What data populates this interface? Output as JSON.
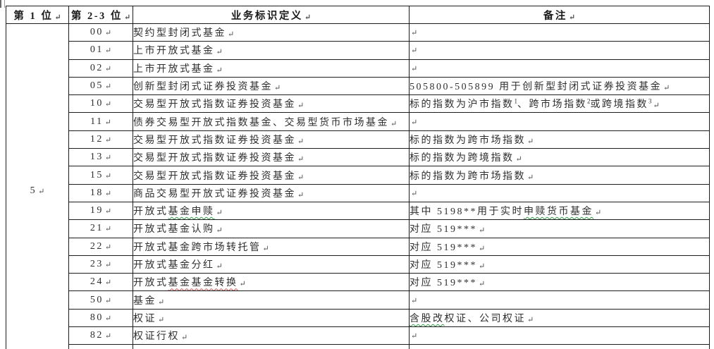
{
  "table": {
    "headers": [
      "第 1 位",
      "第 2-3 位",
      "业务标识定义",
      "备注"
    ],
    "first_digit": "5",
    "return_mark": "↵",
    "rows": [
      {
        "code": "00",
        "def": [
          {
            "t": "契约型封闭式基金"
          }
        ],
        "remark": []
      },
      {
        "code": "01",
        "def": [
          {
            "t": "上市开放式基金"
          }
        ],
        "remark": []
      },
      {
        "code": "02",
        "def": [
          {
            "t": "上市开放式基金"
          }
        ],
        "remark": []
      },
      {
        "code": "05",
        "def": [
          {
            "t": "创新型封闭式证券投资基金"
          }
        ],
        "remark": [
          {
            "t": "505800-505899 用于创新型封闭式证券投资基金"
          }
        ]
      },
      {
        "code": "10",
        "def": [
          {
            "t": "交易型开放式指数证券投资基金"
          }
        ],
        "remark": [
          {
            "t": "标的指数为沪市指数"
          },
          {
            "t": "1",
            "sup": true
          },
          {
            "t": "、跨市场指数"
          },
          {
            "t": "2",
            "sup": true
          },
          {
            "t": "或跨境指数"
          },
          {
            "t": "3",
            "sup": true
          }
        ]
      },
      {
        "code": "11",
        "def": [
          {
            "t": "债券交易型开放式指数基金、交易型货币市场基金"
          }
        ],
        "remark": []
      },
      {
        "code": "12",
        "def": [
          {
            "t": "交易型开放式指数证券投资基金"
          }
        ],
        "remark": [
          {
            "t": "标的指数为跨市场指数"
          }
        ]
      },
      {
        "code": "13",
        "def": [
          {
            "t": "交易型开放式指数证券投资基金"
          }
        ],
        "remark": [
          {
            "t": "标的指数为跨境指数"
          }
        ]
      },
      {
        "code": "15",
        "def": [
          {
            "t": "交易型开放式指数证券投资基金"
          }
        ],
        "remark": [
          {
            "t": "标的指数为跨市场指数"
          }
        ]
      },
      {
        "code": "18",
        "def": [
          {
            "t": "商品交易型开放式证券投资基金"
          }
        ],
        "remark": []
      },
      {
        "code": "19",
        "def": [
          {
            "t": "开放式"
          },
          {
            "t": "基金申赎",
            "wavy": "green"
          }
        ],
        "remark": [
          {
            "t": "其中 5198**用于实时"
          },
          {
            "t": "申赎货币基金",
            "wavy": "green"
          }
        ]
      },
      {
        "code": "21",
        "def": [
          {
            "t": "开放式基金认购"
          }
        ],
        "remark": [
          {
            "t": "对应 519***"
          }
        ]
      },
      {
        "code": "22",
        "def": [
          {
            "t": "开放式基金跨市场转托管"
          }
        ],
        "remark": [
          {
            "t": "对应 519***"
          }
        ]
      },
      {
        "code": "23",
        "def": [
          {
            "t": "开放式基金分红"
          }
        ],
        "remark": [
          {
            "t": "对应 519***"
          }
        ]
      },
      {
        "code": "24",
        "def": [
          {
            "t": "开放式"
          },
          {
            "t": "基金基金转换",
            "wavy": "red"
          }
        ],
        "remark": [
          {
            "t": "对应 519***"
          }
        ]
      },
      {
        "code": "50",
        "def": [
          {
            "t": "基金"
          }
        ],
        "remark": []
      },
      {
        "code": "80",
        "def": [
          {
            "t": "权证"
          }
        ],
        "remark": [
          {
            "t": "含股改",
            "wavy": "green"
          },
          {
            "t": "权证、公司权证"
          }
        ]
      },
      {
        "code": "82",
        "def": [
          {
            "t": "权证行权"
          }
        ],
        "remark": []
      }
    ],
    "colors": {
      "text": "#2f2f2f",
      "border": "#1c1c1c",
      "background": "#ffffff",
      "wavy_green": "#2f9e44",
      "wavy_red": "#c9544f",
      "return_mark": "#4a4a4a"
    }
  }
}
